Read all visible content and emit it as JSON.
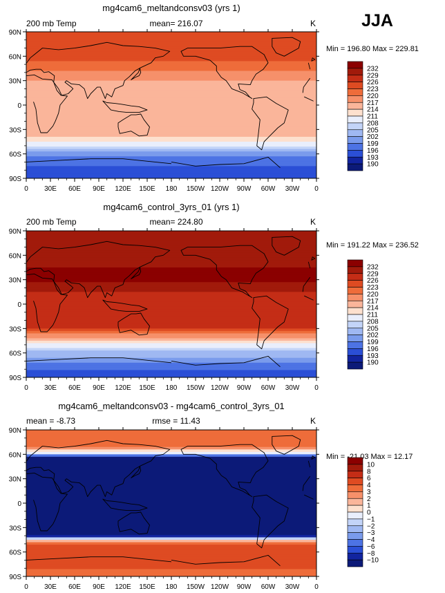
{
  "season_label": "JJA",
  "chart_data": [
    {
      "type": "heatmap",
      "title": "mg4cam6_meltandconsv03 (yrs 1)",
      "left_label": "200 mb Temp",
      "center_label": "mean= 216.07",
      "right_label": "K",
      "stats_label": "Min = 196.80 Max = 229.81",
      "variable": "200 mb Temp",
      "units": "K",
      "mean": 216.07,
      "min": 196.8,
      "max": 229.81,
      "x_ticks": [
        "0",
        "30E",
        "60E",
        "90E",
        "120E",
        "150E",
        "180",
        "150W",
        "120W",
        "90W",
        "60W",
        "30W",
        "0"
      ],
      "y_ticks": [
        "90N",
        "60N",
        "30N",
        "0",
        "30S",
        "60S",
        "90S"
      ],
      "legend_levels": [
        "232",
        "229",
        "226",
        "223",
        "220",
        "217",
        "214",
        "211",
        "208",
        "205",
        "202",
        "199",
        "196",
        "193",
        "190"
      ],
      "zonal_mean_profile": {
        "latitude": [
          90,
          75,
          60,
          45,
          30,
          15,
          0,
          -15,
          -30,
          -45,
          -60,
          -75,
          -90
        ],
        "value": [
          226,
          225,
          224,
          221,
          217,
          215,
          216,
          216,
          217,
          212,
          200,
          196,
          195
        ]
      }
    },
    {
      "type": "heatmap",
      "title": "mg4cam6_control_3yrs_01 (yrs 1)",
      "left_label": "200 mb Temp",
      "center_label": "mean= 224.80",
      "right_label": "K",
      "stats_label": "Min = 191.22 Max = 236.52",
      "variable": "200 mb Temp",
      "units": "K",
      "mean": 224.8,
      "min": 191.22,
      "max": 236.52,
      "x_ticks": [
        "0",
        "30E",
        "60E",
        "90E",
        "120E",
        "150E",
        "180",
        "150W",
        "120W",
        "90W",
        "60W",
        "30W",
        "0"
      ],
      "y_ticks": [
        "90N",
        "60N",
        "30N",
        "0",
        "30S",
        "60S",
        "90S"
      ],
      "legend_levels": [
        "232",
        "229",
        "226",
        "223",
        "220",
        "217",
        "214",
        "211",
        "208",
        "205",
        "202",
        "199",
        "196",
        "193",
        "190"
      ],
      "zonal_mean_profile": {
        "latitude": [
          90,
          75,
          60,
          45,
          30,
          15,
          0,
          -15,
          -30,
          -45,
          -60,
          -75,
          -90
        ],
        "value": [
          229,
          230,
          231,
          232,
          233,
          229,
          228,
          227,
          226,
          214,
          204,
          198,
          194
        ]
      }
    },
    {
      "type": "heatmap",
      "title": "mg4cam6_meltandconsv03 - mg4cam6_control_3yrs_01",
      "left_label": "mean =  -8.73",
      "center_label": "rmse =  11.43",
      "right_label": "K",
      "stats_label": "Min = -21.03 Max =  12.17",
      "units": "K",
      "mean": -8.73,
      "rmse": 11.43,
      "min": -21.03,
      "max": 12.17,
      "x_ticks": [
        "0",
        "30E",
        "60E",
        "90E",
        "120E",
        "150E",
        "180",
        "150W",
        "120W",
        "90W",
        "60W",
        "30W",
        "0"
      ],
      "y_ticks": [
        "90N",
        "60N",
        "30N",
        "0",
        "30S",
        "60S",
        "90S"
      ],
      "legend_levels": [
        "10",
        "8",
        "6",
        "4",
        "3",
        "2",
        "1",
        "0",
        "−1",
        "−2",
        "−3",
        "−4",
        "−6",
        "−8",
        "−10"
      ],
      "zonal_mean_profile": {
        "latitude": [
          90,
          80,
          70,
          62,
          55,
          45,
          30,
          15,
          0,
          -15,
          -30,
          -40,
          -44,
          -48,
          -55,
          -62,
          -70,
          -80,
          -90
        ],
        "value": [
          4,
          4,
          3,
          0,
          -11,
          -12,
          -12,
          -12,
          -12,
          -12,
          -12,
          -10,
          0,
          3,
          5,
          6,
          5,
          4,
          3
        ]
      }
    }
  ]
}
